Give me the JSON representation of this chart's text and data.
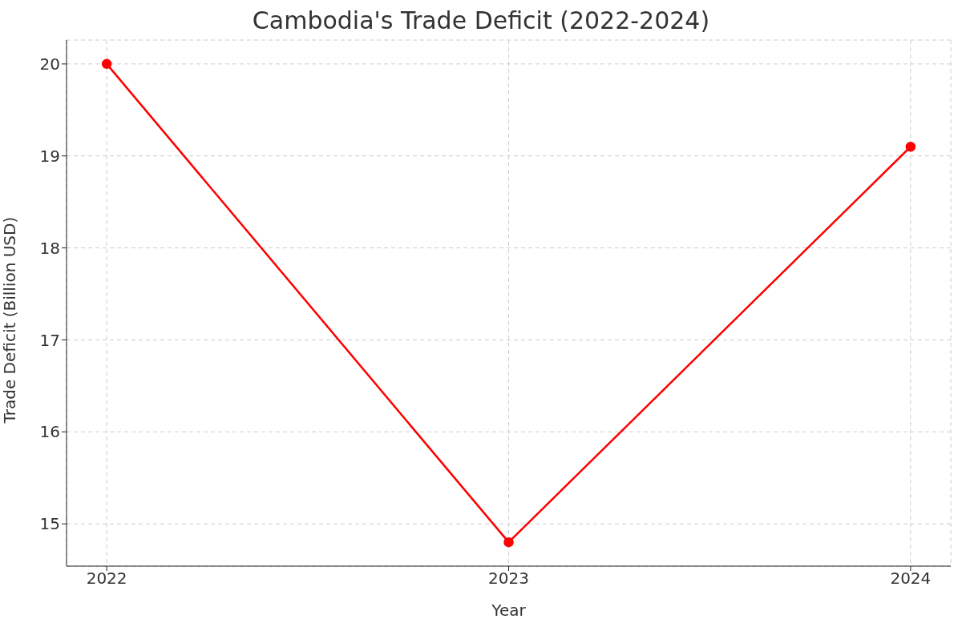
{
  "chart_data": {
    "type": "line",
    "title": "Cambodia's Trade Deficit (2022-2024)",
    "xlabel": "Year",
    "ylabel": "Trade Deficit (Billion USD)",
    "x": [
      2022,
      2023,
      2024
    ],
    "series": [
      {
        "color": "#ff0000",
        "values": [
          20,
          14.8,
          19.1
        ]
      }
    ],
    "xlim": [
      2021.9,
      2024.1
    ],
    "xticks": [
      2022,
      2023,
      2024
    ],
    "ylim": [
      14.54,
      20.26
    ],
    "yticks": [
      15,
      16,
      17,
      18,
      19,
      20
    ],
    "grid": true,
    "marker": "circle",
    "line_style": "solid",
    "legend": false
  }
}
